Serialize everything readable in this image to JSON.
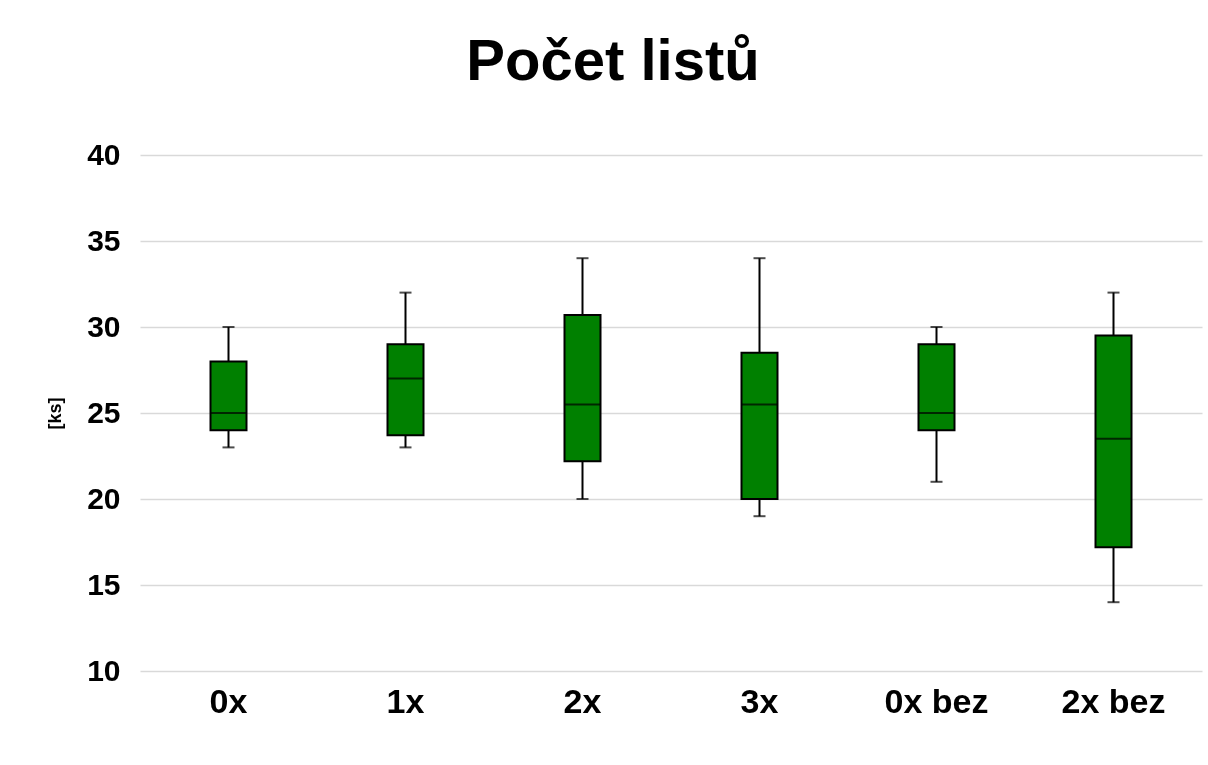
{
  "chart_data": {
    "type": "box",
    "title": "Počet listů",
    "ylabel": "[ks]",
    "categories": [
      "0x",
      "1x",
      "2x",
      "3x",
      "0x bez",
      "2x bez"
    ],
    "color": "#008000",
    "boxes": [
      {
        "low": 23,
        "q1": 24,
        "median": 25,
        "q3": 28,
        "high": 30
      },
      {
        "low": 23,
        "q1": 23.7,
        "median": 27,
        "q3": 29,
        "high": 32
      },
      {
        "low": 20,
        "q1": 22.2,
        "median": 25.5,
        "q3": 30.7,
        "high": 34
      },
      {
        "low": 19,
        "q1": 20,
        "median": 25.5,
        "q3": 28.5,
        "high": 34
      },
      {
        "low": 21,
        "q1": 24,
        "median": 25,
        "q3": 29,
        "high": 30
      },
      {
        "low": 14,
        "q1": 17.2,
        "median": 23.5,
        "q3": 29.5,
        "high": 32
      }
    ],
    "ylim": [
      10,
      40
    ],
    "yticks": [
      10,
      15,
      20,
      25,
      30,
      35,
      40
    ],
    "grid": "y"
  }
}
